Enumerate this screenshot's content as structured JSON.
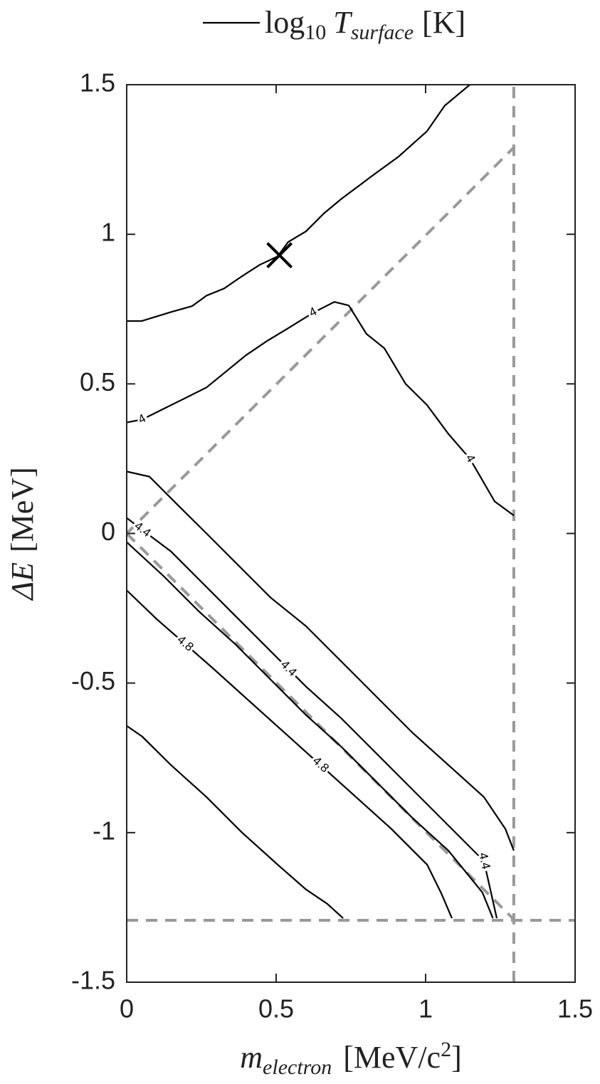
{
  "chart_data": {
    "type": "contour",
    "legend": {
      "label": [
        "log",
        "10",
        "T",
        "surface",
        "[K]"
      ],
      "color": "#000000"
    },
    "xlabel": [
      "m",
      "electron",
      "[MeV/c",
      "2",
      "]"
    ],
    "ylabel": [
      "ΔE",
      "[MeV]"
    ],
    "xlim": [
      0,
      1.5
    ],
    "ylim": [
      -1.5,
      1.5
    ],
    "xticks": [
      0,
      0.5,
      1,
      1.5
    ],
    "yticks": [
      -1.5,
      -1,
      -0.5,
      0,
      0.5,
      1,
      1.5
    ],
    "series": [
      {
        "color": "#000000",
        "x": [
          0,
          0.05,
          0.148,
          0.219,
          0.267,
          0.326,
          0.386,
          0.445,
          0.505,
          0.54,
          0.6,
          0.66,
          0.719,
          0.814,
          0.91,
          1.005,
          1.064,
          1.148
        ],
        "y": [
          0.71,
          0.71,
          0.74,
          0.76,
          0.795,
          0.819,
          0.86,
          0.898,
          0.926,
          0.974,
          1.01,
          1.07,
          1.119,
          1.19,
          1.26,
          1.345,
          1.43,
          1.5
        ]
      },
      {
        "color": "#000000",
        "level": 4,
        "x": [
          0,
          0.052,
          0.124,
          0.195,
          0.267,
          0.326,
          0.398,
          0.469,
          0.54,
          0.624,
          0.695,
          0.743,
          0.802,
          0.862,
          0.933,
          1.005,
          1.076,
          1.148,
          1.231,
          1.295
        ],
        "y": [
          0.371,
          0.381,
          0.417,
          0.452,
          0.488,
          0.536,
          0.595,
          0.643,
          0.686,
          0.738,
          0.774,
          0.762,
          0.667,
          0.619,
          0.5,
          0.429,
          0.333,
          0.25,
          0.107,
          0.06
        ]
      },
      {
        "color": "#000000",
        "x": [
          0,
          0.076,
          0.171,
          0.267,
          0.362,
          0.481,
          0.6,
          0.719,
          0.838,
          0.957,
          1.076,
          1.195,
          1.267,
          1.295
        ],
        "y": [
          0.207,
          0.19,
          0.095,
          0,
          -0.095,
          -0.214,
          -0.31,
          -0.429,
          -0.548,
          -0.667,
          -0.774,
          -0.881,
          -0.988,
          -1.06
        ]
      },
      {
        "color": "#000000",
        "level": 4.4,
        "x": [
          0,
          0.052,
          0.148,
          0.243,
          0.362,
          0.481,
          0.6,
          0.719,
          0.838,
          0.957,
          1.076,
          1.195,
          1.238
        ],
        "y": [
          0.052,
          0.012,
          -0.06,
          -0.155,
          -0.274,
          -0.393,
          -0.512,
          -0.619,
          -0.738,
          -0.857,
          -0.976,
          -1.095,
          -1.286
        ]
      },
      {
        "color": "#000000",
        "x": [
          0,
          0.124,
          0.243,
          0.362,
          0.481,
          0.6,
          0.719,
          0.838,
          0.957,
          1.076,
          1.19,
          1.225
        ],
        "y": [
          -0.029,
          -0.143,
          -0.262,
          -0.369,
          -0.488,
          -0.607,
          -0.714,
          -0.833,
          -0.952,
          -1.06,
          -1.2,
          -1.286
        ]
      },
      {
        "color": "#000000",
        "level": 4.8,
        "x": [
          0,
          0.1,
          0.195,
          0.29,
          0.41,
          0.529,
          0.648,
          0.767,
          0.886,
          1.005,
          1.052,
          1.088
        ],
        "y": [
          -0.19,
          -0.286,
          -0.369,
          -0.452,
          -0.56,
          -0.667,
          -0.774,
          -0.881,
          -0.988,
          -1.107,
          -1.202,
          -1.286
        ]
      },
      {
        "color": "#000000",
        "x": [
          0,
          0.052,
          0.148,
          0.267,
          0.386,
          0.505,
          0.6,
          0.671,
          0.724
        ],
        "y": [
          -0.643,
          -0.679,
          -0.774,
          -0.881,
          -1.0,
          -1.107,
          -1.19,
          -1.238,
          -1.286
        ]
      }
    ],
    "reference_lines": {
      "color": "#999999",
      "lines": [
        {
          "x": [
            1.295,
            1.295
          ],
          "y": [
            -1.5,
            1.5
          ]
        },
        {
          "x": [
            0,
            1.5
          ],
          "y": [
            -1.293,
            -1.293
          ]
        },
        {
          "x": [
            0,
            1.295
          ],
          "y": [
            0,
            1.29
          ]
        },
        {
          "x": [
            0,
            1.295
          ],
          "y": [
            0,
            -1.29
          ]
        }
      ]
    },
    "marker": {
      "x": 0.511,
      "y": 0.93,
      "color": "#000000"
    }
  }
}
